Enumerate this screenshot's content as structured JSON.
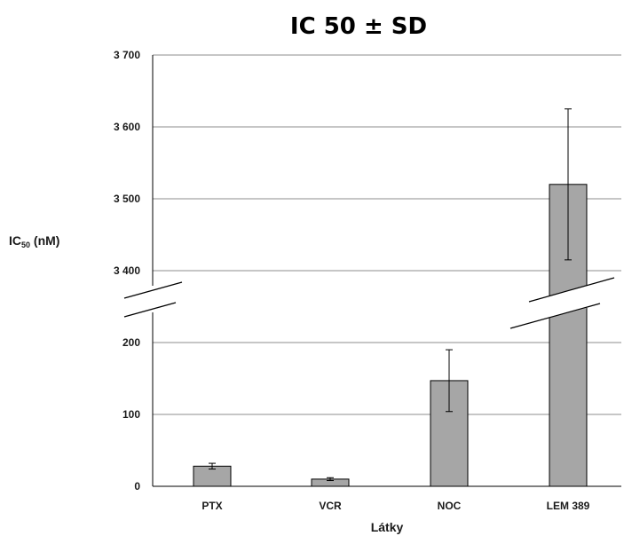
{
  "chart_data": {
    "type": "bar",
    "title": "IC 50 ± SD",
    "xlabel": "Látky",
    "ylabel": {
      "main": "IC",
      "sub": "50",
      "unit": " (nM)"
    },
    "categories": [
      "PTX",
      "VCR",
      "NOC",
      "LEM 389"
    ],
    "series": [
      {
        "values": [
          28,
          10,
          147,
          3520
        ],
        "errors": [
          4,
          2,
          43,
          105
        ]
      }
    ],
    "y_axis": {
      "broken": true,
      "lower_segment": {
        "range": [
          0,
          200
        ],
        "ticks": [
          0,
          100,
          200
        ],
        "tick_labels": [
          "0",
          "100",
          "200"
        ]
      },
      "upper_segment": {
        "range": [
          3400,
          3700
        ],
        "ticks": [
          3400,
          3500,
          3600,
          3700
        ],
        "tick_labels": [
          "3 400",
          "3 500",
          "3 600",
          "3 700"
        ]
      }
    },
    "grid": true,
    "bar_color": "#a6a6a6",
    "bar_edge_color": "#000000",
    "grid_color": "#8c8c8c"
  }
}
